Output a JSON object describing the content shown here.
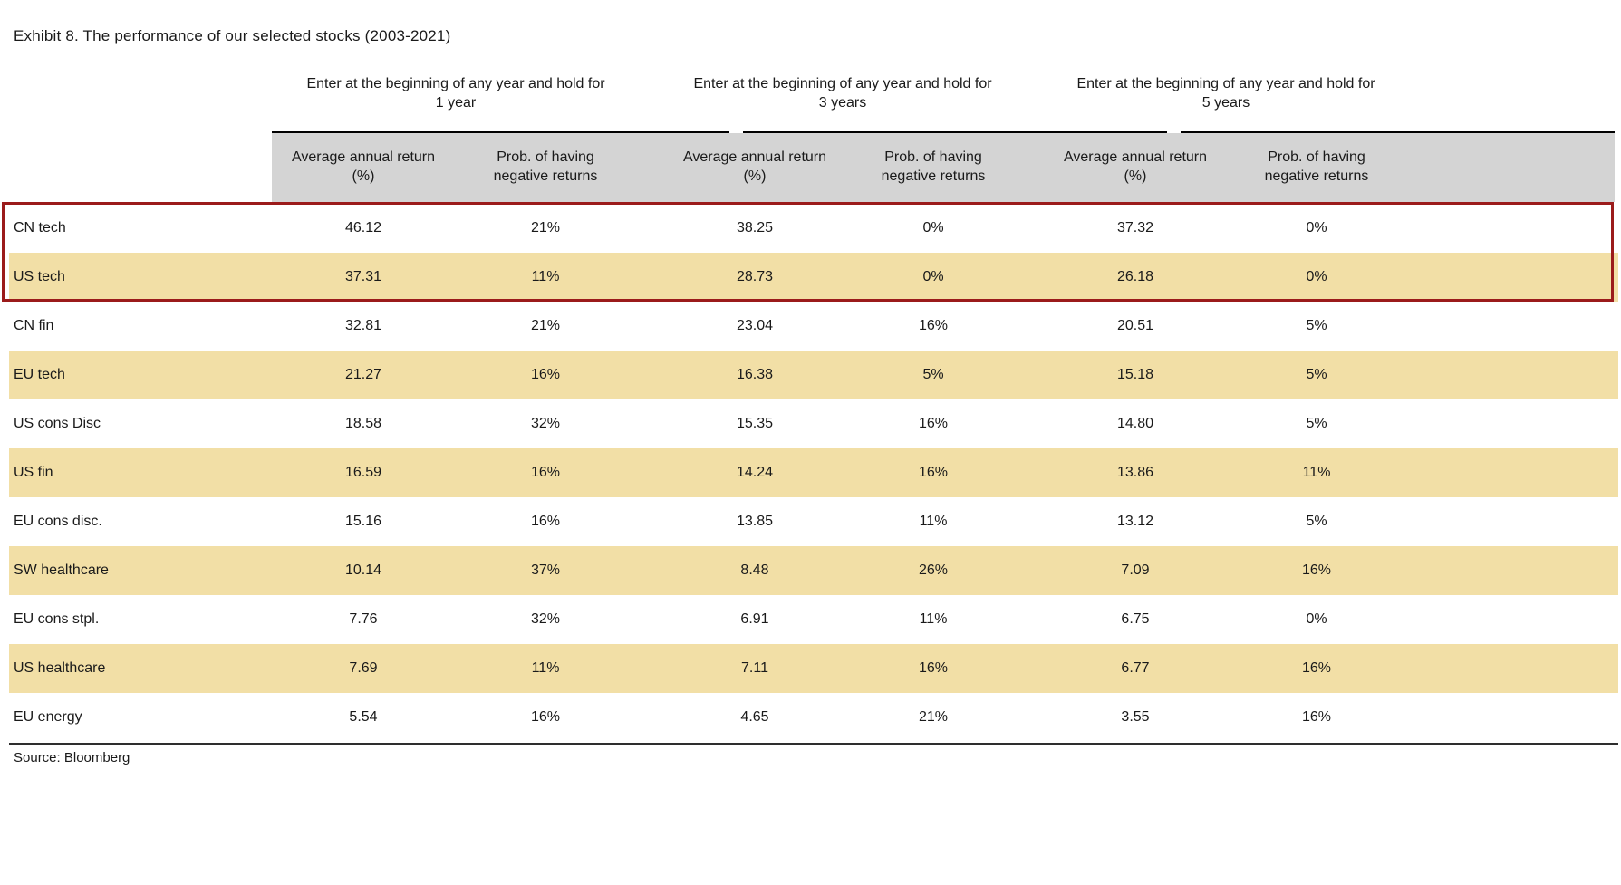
{
  "title": "Exhibit 8. The performance of our selected stocks (2003-2021)",
  "source_label": "Source: Bloomberg",
  "colors": {
    "row_highlight": "#f2dfa6",
    "header_band": "#d4d4d4",
    "highlight_box_border": "#9b1b1b",
    "text": "#1a1a1a"
  },
  "groups": [
    {
      "line1": "Enter at the beginning of any year and hold for",
      "line2": "1 year"
    },
    {
      "line1": "Enter at the beginning of any year and hold for",
      "line2": "3 years"
    },
    {
      "line1": "Enter at the beginning of any year and hold for",
      "line2": "5 years"
    }
  ],
  "subheaders": {
    "return_l1": "Average annual return",
    "return_l2": "(%)",
    "prob_l1": "Prob. of having",
    "prob_l2": "negative returns"
  },
  "chart_data": {
    "type": "table",
    "title": "Exhibit 8. The performance of our selected stocks (2003-2021)",
    "column_groups": [
      "Hold for 1 year",
      "Hold for 3 years",
      "Hold for 5 years"
    ],
    "columns": [
      "Average annual return (%) 1y",
      "Prob. of negative returns 1y",
      "Average annual return (%) 3y",
      "Prob. of negative returns 3y",
      "Average annual return (%) 5y",
      "Prob. of negative returns 5y"
    ],
    "highlighted_rows_in_red_box": [
      "CN tech",
      "US tech"
    ]
  },
  "rows": [
    {
      "name": "CN tech",
      "values": [
        "46.12",
        "21%",
        "38.25",
        "0%",
        "37.32",
        "0%"
      ]
    },
    {
      "name": "US tech",
      "values": [
        "37.31",
        "11%",
        "28.73",
        "0%",
        "26.18",
        "0%"
      ]
    },
    {
      "name": "CN fin",
      "values": [
        "32.81",
        "21%",
        "23.04",
        "16%",
        "20.51",
        "5%"
      ]
    },
    {
      "name": "EU tech",
      "values": [
        "21.27",
        "16%",
        "16.38",
        "5%",
        "15.18",
        "5%"
      ]
    },
    {
      "name": "US cons Disc",
      "values": [
        "18.58",
        "32%",
        "15.35",
        "16%",
        "14.80",
        "5%"
      ]
    },
    {
      "name": "US fin",
      "values": [
        "16.59",
        "16%",
        "14.24",
        "16%",
        "13.86",
        "11%"
      ]
    },
    {
      "name": "EU cons disc.",
      "values": [
        "15.16",
        "16%",
        "13.85",
        "11%",
        "13.12",
        "5%"
      ]
    },
    {
      "name": "SW healthcare",
      "values": [
        "10.14",
        "37%",
        "8.48",
        "26%",
        "7.09",
        "16%"
      ]
    },
    {
      "name": "EU cons stpl.",
      "values": [
        "7.76",
        "32%",
        "6.91",
        "11%",
        "6.75",
        "0%"
      ]
    },
    {
      "name": "US healthcare",
      "values": [
        "7.69",
        "11%",
        "7.11",
        "16%",
        "6.77",
        "16%"
      ]
    },
    {
      "name": "EU energy",
      "values": [
        "5.54",
        "16%",
        "4.65",
        "21%",
        "3.55",
        "16%"
      ]
    }
  ]
}
